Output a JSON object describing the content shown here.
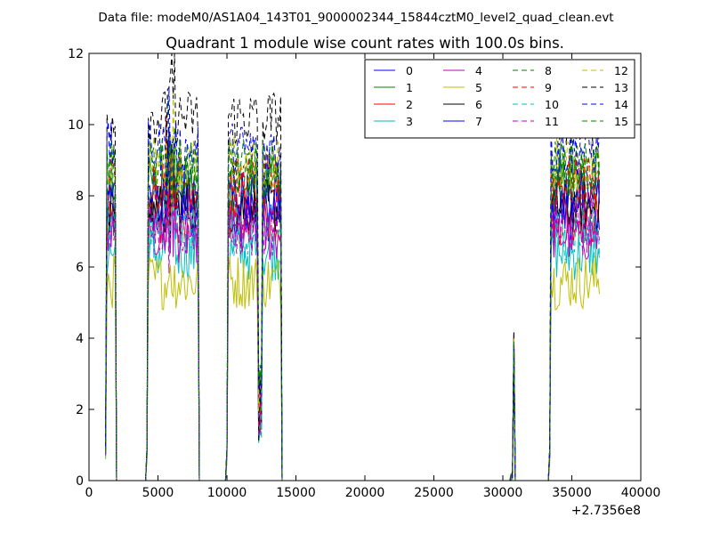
{
  "header": {
    "data_file": "Data file: modeM0/AS1A04_143T01_9000002344_15844cztM0_level2_quad_clean.evt"
  },
  "chart_data": {
    "type": "line",
    "title": "Quadrant 1 module wise count rates with 100.0s bins.",
    "xlabel": "",
    "ylabel": "",
    "x_offset_label": "+2.7356e8",
    "xlim": [
      0,
      40000
    ],
    "ylim": [
      0,
      12
    ],
    "x_ticks": [
      0,
      5000,
      10000,
      15000,
      20000,
      25000,
      30000,
      35000,
      40000
    ],
    "y_ticks": [
      0,
      2,
      4,
      6,
      8,
      10,
      12
    ],
    "x_tick_labels": [
      "0",
      "5000",
      "10000",
      "15000",
      "20000",
      "25000",
      "30000",
      "35000",
      "40000"
    ],
    "y_tick_labels": [
      "0",
      "2",
      "4",
      "6",
      "8",
      "10",
      "12"
    ],
    "legend_placement": "top-right",
    "grid": false,
    "bin_size_s": 100,
    "x_start": 1200,
    "x_end": 37000,
    "gaps_after_each_segment": [
      [
        1200,
        1900
      ],
      [
        4200,
        7900
      ],
      [
        10000,
        13900
      ],
      [
        30600,
        30800
      ],
      [
        33400,
        37000
      ]
    ],
    "series": [
      {
        "name": "0",
        "color": "#0000ff",
        "dash": "solid",
        "level": 7.5
      },
      {
        "name": "1",
        "color": "#008000",
        "dash": "solid",
        "level": 8.3
      },
      {
        "name": "2",
        "color": "#ff0000",
        "dash": "solid",
        "level": 7.4
      },
      {
        "name": "3",
        "color": "#00bfbf",
        "dash": "solid",
        "level": 6.4
      },
      {
        "name": "4",
        "color": "#bf00bf",
        "dash": "solid",
        "level": 6.9
      },
      {
        "name": "5",
        "color": "#bfbf00",
        "dash": "solid",
        "level": 5.6
      },
      {
        "name": "6",
        "color": "#000000",
        "dash": "solid",
        "level": 7.7
      },
      {
        "name": "7",
        "color": "#0000ff",
        "dash": "solid",
        "level": 8.0
      },
      {
        "name": "8",
        "color": "#008000",
        "dash": "dashed",
        "level": 8.7
      },
      {
        "name": "9",
        "color": "#ff0000",
        "dash": "dashed",
        "level": 8.4
      },
      {
        "name": "10",
        "color": "#00bfbf",
        "dash": "dashed",
        "level": 7.0
      },
      {
        "name": "11",
        "color": "#bf00bf",
        "dash": "dashed",
        "level": 7.1
      },
      {
        "name": "12",
        "color": "#bfbf00",
        "dash": "dashed",
        "level": 8.9
      },
      {
        "name": "13",
        "color": "#000000",
        "dash": "dashed",
        "level": 10.2
      },
      {
        "name": "14",
        "color": "#0000ff",
        "dash": "dashed",
        "level": 9.3
      },
      {
        "name": "15",
        "color": "#008000",
        "dash": "dashed",
        "level": 8.8
      }
    ],
    "spike": {
      "x": 30800,
      "y": 4.2
    }
  }
}
